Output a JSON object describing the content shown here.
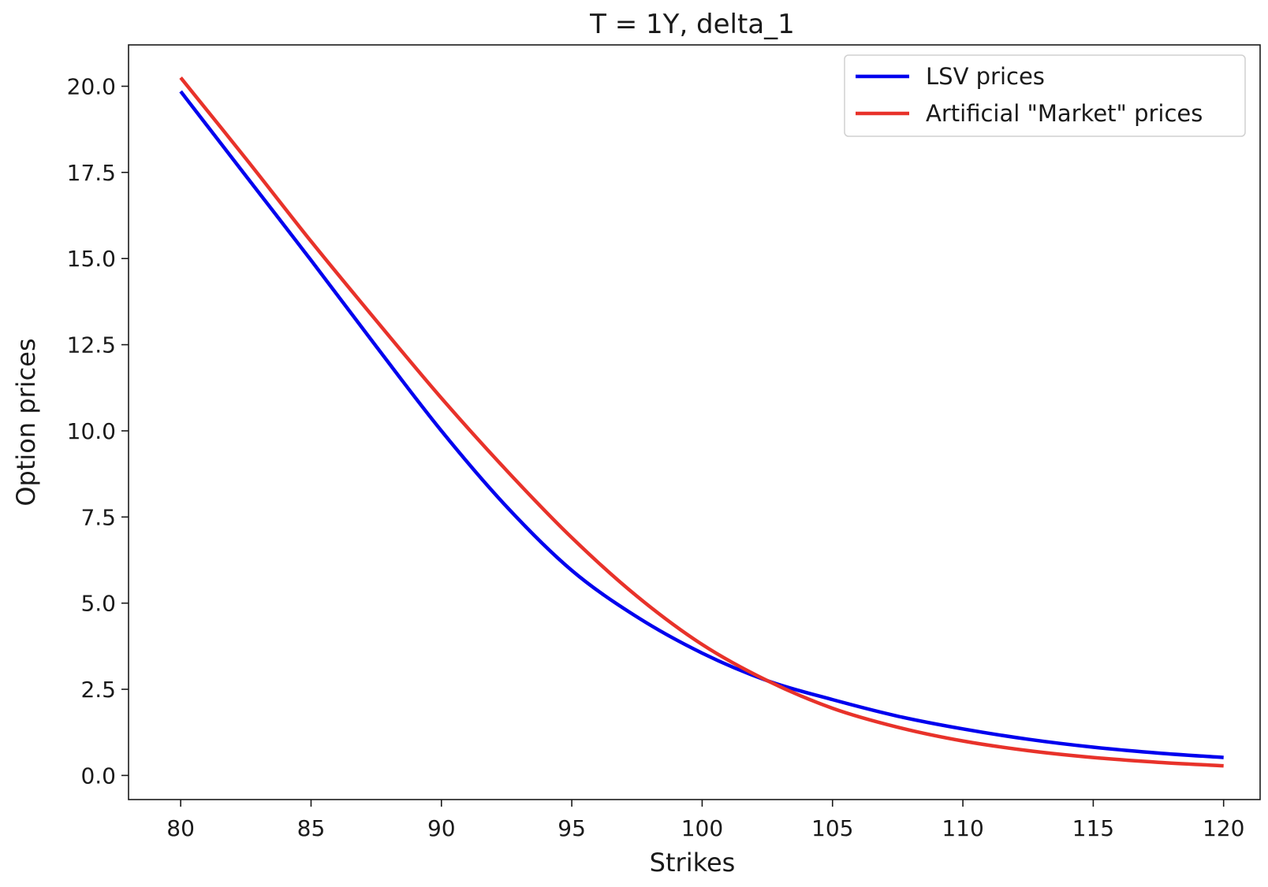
{
  "chart_data": {
    "type": "line",
    "title": "T = 1Y, delta_1",
    "xlabel": "Strikes",
    "ylabel": "Option prices",
    "xlim": [
      78,
      121.4
    ],
    "ylim": [
      -0.7,
      21.2
    ],
    "xticks": [
      80,
      85,
      90,
      95,
      100,
      105,
      110,
      115,
      120
    ],
    "xtick_labels": [
      "80",
      "85",
      "90",
      "95",
      "100",
      "105",
      "110",
      "115",
      "120"
    ],
    "yticks": [
      0,
      2.5,
      5,
      7.5,
      10,
      12.5,
      15,
      17.5,
      20
    ],
    "ytick_labels": [
      "0.0",
      "2.5",
      "5.0",
      "7.5",
      "10.0",
      "12.5",
      "15.0",
      "17.5",
      "20.0"
    ],
    "grid": false,
    "legend_position": "top-right",
    "x": [
      80,
      82.5,
      85,
      87.5,
      90,
      92.5,
      95,
      97.5,
      100,
      102.5,
      105,
      107.5,
      110,
      112.5,
      115,
      117.5,
      120
    ],
    "series": [
      {
        "name": "LSV prices",
        "color": "#0000ee",
        "values": [
          19.85,
          17.4,
          14.95,
          12.45,
          10.0,
          7.8,
          5.95,
          4.6,
          3.55,
          2.75,
          2.2,
          1.72,
          1.35,
          1.05,
          0.82,
          0.65,
          0.52
        ]
      },
      {
        "name": "Artificial \"Market\" prices",
        "color": "#e8322a",
        "values": [
          20.25,
          17.9,
          15.5,
          13.2,
          10.95,
          8.85,
          6.9,
          5.2,
          3.8,
          2.75,
          1.95,
          1.4,
          1.0,
          0.72,
          0.52,
          0.38,
          0.28
        ]
      }
    ]
  }
}
